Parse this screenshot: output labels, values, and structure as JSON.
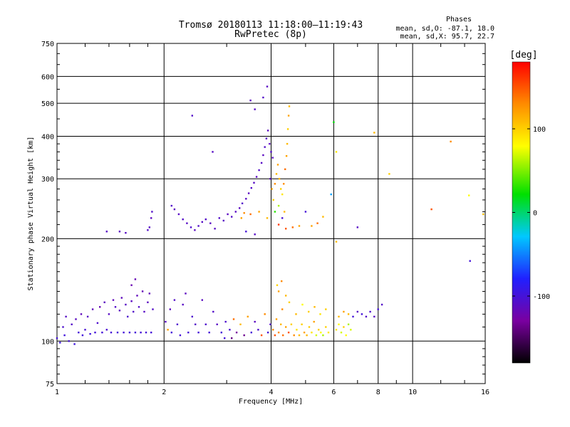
{
  "chart_data": {
    "type": "scatter",
    "title": "Tromsø 20180113 11:18:00–11:19:43",
    "subtitle": "RwPretec (8p)",
    "info_heading": "Phases",
    "info_lines": [
      "mean, sd,O: -87.1, 18.0",
      "mean, sd,X:  95.7, 22.7"
    ],
    "xlabel": "Frequency [MHz]",
    "ylabel": "Stationary phase Virtual Height [km]",
    "x_scale": "log",
    "y_scale": "log",
    "xlim": [
      1,
      16
    ],
    "ylim": [
      75,
      750
    ],
    "x_ticks": [
      1,
      2,
      4,
      6,
      8,
      10,
      16
    ],
    "x_tick_labels": [
      "1",
      "2",
      "4",
      "6",
      "8",
      "10",
      "16"
    ],
    "y_ticks": [
      75,
      100,
      200,
      300,
      400,
      500,
      600,
      750
    ],
    "y_tick_labels": [
      "75",
      "100",
      "200",
      "300",
      "400",
      "500",
      "600",
      "750"
    ],
    "grid": true,
    "colorbar": {
      "label": "[deg]",
      "range": [
        -180,
        180
      ],
      "ticks": [
        100,
        0,
        -100
      ],
      "tick_labels": [
        "100",
        "0",
        "-100"
      ],
      "colors": [
        "#000000",
        "#7a00a0",
        "#2020ff",
        "#00c8ff",
        "#00e000",
        "#ffff00",
        "#ff8c00",
        "#ff0000"
      ]
    },
    "series": [
      {
        "name": "",
        "points": [
          [
            1.0,
            102,
            -100
          ],
          [
            1.02,
            99,
            -95
          ],
          [
            1.04,
            110,
            -105
          ],
          [
            1.05,
            104,
            -98
          ],
          [
            1.06,
            118,
            -110
          ],
          [
            1.08,
            100,
            -102
          ],
          [
            1.1,
            112,
            -108
          ],
          [
            1.12,
            98,
            -96
          ],
          [
            1.13,
            116,
            -112
          ],
          [
            1.15,
            106,
            -100
          ],
          [
            1.17,
            120,
            -115
          ],
          [
            1.18,
            104,
            -99
          ],
          [
            1.2,
            108,
            -102
          ],
          [
            1.22,
            118,
            -110
          ],
          [
            1.24,
            105,
            -98
          ],
          [
            1.26,
            124,
            -115
          ],
          [
            1.28,
            106,
            -100
          ],
          [
            1.3,
            113,
            -105
          ],
          [
            1.32,
            126,
            -118
          ],
          [
            1.34,
            106,
            -100
          ],
          [
            1.36,
            130,
            -112
          ],
          [
            1.38,
            108,
            -103
          ],
          [
            1.4,
            120,
            -110
          ],
          [
            1.42,
            106,
            -101
          ],
          [
            1.44,
            132,
            -115
          ],
          [
            1.46,
            126,
            -108
          ],
          [
            1.48,
            106,
            -100
          ],
          [
            1.5,
            123,
            -112
          ],
          [
            1.52,
            134,
            -114
          ],
          [
            1.54,
            106,
            -100
          ],
          [
            1.56,
            128,
            -110
          ],
          [
            1.58,
            118,
            -105
          ],
          [
            1.6,
            106,
            -100
          ],
          [
            1.62,
            131,
            -112
          ],
          [
            1.64,
            122,
            -108
          ],
          [
            1.66,
            106,
            -100
          ],
          [
            1.68,
            136,
            -115
          ],
          [
            1.7,
            126,
            -108
          ],
          [
            1.72,
            106,
            -101
          ],
          [
            1.74,
            140,
            -118
          ],
          [
            1.76,
            122,
            -110
          ],
          [
            1.78,
            106,
            -100
          ],
          [
            1.8,
            130,
            -112
          ],
          [
            1.82,
            138,
            -116
          ],
          [
            1.84,
            106,
            -100
          ],
          [
            1.86,
            124,
            -108
          ],
          [
            1.62,
            146,
            -120
          ],
          [
            1.66,
            152,
            -118
          ],
          [
            1.38,
            210,
            -110
          ],
          [
            1.5,
            210,
            -112
          ],
          [
            1.56,
            208,
            -110
          ],
          [
            1.8,
            212,
            -108
          ],
          [
            1.82,
            216,
            -110
          ],
          [
            1.84,
            230,
            -112
          ],
          [
            1.85,
            240,
            -108
          ],
          [
            2.02,
            114,
            -110
          ],
          [
            2.05,
            108,
            120
          ],
          [
            2.08,
            124,
            -112
          ],
          [
            2.1,
            106,
            -100
          ],
          [
            2.14,
            132,
            -108
          ],
          [
            2.18,
            112,
            -105
          ],
          [
            2.22,
            104,
            -100
          ],
          [
            2.26,
            128,
            -110
          ],
          [
            2.3,
            138,
            -112
          ],
          [
            2.34,
            106,
            -100
          ],
          [
            2.4,
            118,
            -105
          ],
          [
            2.45,
            112,
            -108
          ],
          [
            2.5,
            106,
            -100
          ],
          [
            2.56,
            132,
            -112
          ],
          [
            2.62,
            112,
            -105
          ],
          [
            2.68,
            106,
            -100
          ],
          [
            2.75,
            122,
            -108
          ],
          [
            2.82,
            112,
            -110
          ],
          [
            2.9,
            106,
            -100
          ],
          [
            2.98,
            114,
            -105
          ],
          [
            3.06,
            108,
            -102
          ],
          [
            3.14,
            116,
            140
          ],
          [
            3.2,
            106,
            -130
          ],
          [
            3.28,
            112,
            110
          ],
          [
            3.36,
            104,
            -135
          ],
          [
            3.44,
            118,
            120
          ],
          [
            3.52,
            106,
            -100
          ],
          [
            3.6,
            114,
            -112
          ],
          [
            3.68,
            108,
            -105
          ],
          [
            3.76,
            104,
            150
          ],
          [
            3.84,
            120,
            130
          ],
          [
            3.92,
            106,
            -100
          ],
          [
            3.98,
            112,
            -108
          ],
          [
            2.96,
            102,
            -100
          ],
          [
            3.1,
            102,
            -140
          ],
          [
            2.1,
            250,
            -108
          ],
          [
            2.14,
            244,
            -112
          ],
          [
            2.2,
            236,
            -110
          ],
          [
            2.26,
            228,
            -108
          ],
          [
            2.32,
            222,
            -110
          ],
          [
            2.38,
            216,
            -105
          ],
          [
            2.44,
            212,
            -112
          ],
          [
            2.5,
            218,
            -108
          ],
          [
            2.56,
            224,
            -110
          ],
          [
            2.62,
            228,
            -108
          ],
          [
            2.7,
            222,
            -112
          ],
          [
            2.78,
            214,
            -110
          ],
          [
            2.86,
            230,
            -108
          ],
          [
            2.94,
            226,
            -110
          ],
          [
            3.02,
            236,
            -112
          ],
          [
            3.1,
            232,
            -108
          ],
          [
            3.18,
            240,
            -110
          ],
          [
            3.26,
            246,
            -112
          ],
          [
            3.32,
            254,
            -108
          ],
          [
            3.4,
            262,
            -110
          ],
          [
            3.46,
            272,
            -112
          ],
          [
            3.52,
            282,
            -108
          ],
          [
            3.58,
            292,
            -110
          ],
          [
            3.64,
            304,
            -112
          ],
          [
            3.7,
            318,
            -108
          ],
          [
            3.76,
            334,
            -110
          ],
          [
            3.8,
            352,
            -112
          ],
          [
            3.84,
            372,
            -108
          ],
          [
            3.88,
            394,
            -110
          ],
          [
            3.92,
            416,
            -112
          ],
          [
            3.6,
            480,
            -110
          ],
          [
            3.5,
            510,
            -112
          ],
          [
            3.8,
            520,
            -108
          ],
          [
            3.9,
            560,
            -110
          ],
          [
            2.4,
            460,
            -108
          ],
          [
            2.74,
            360,
            -110
          ],
          [
            3.96,
            380,
            -112
          ],
          [
            4.0,
            360,
            -108
          ],
          [
            4.04,
            346,
            -110
          ],
          [
            3.98,
            300,
            -112
          ],
          [
            4.02,
            280,
            120
          ],
          [
            4.06,
            260,
            100
          ],
          [
            4.1,
            290,
            130
          ],
          [
            4.14,
            310,
            110
          ],
          [
            4.18,
            330,
            120
          ],
          [
            4.22,
            300,
            110
          ],
          [
            4.26,
            280,
            100
          ],
          [
            4.3,
            270,
            90
          ],
          [
            4.34,
            290,
            130
          ],
          [
            4.38,
            320,
            140
          ],
          [
            4.42,
            350,
            120
          ],
          [
            4.44,
            380,
            110
          ],
          [
            4.46,
            420,
            100
          ],
          [
            4.48,
            460,
            120
          ],
          [
            4.5,
            490,
            110
          ],
          [
            4.36,
            240,
            110
          ],
          [
            4.3,
            230,
            -100
          ],
          [
            4.2,
            250,
            60
          ],
          [
            4.1,
            240,
            30
          ],
          [
            3.9,
            230,
            110
          ],
          [
            3.7,
            240,
            120
          ],
          [
            3.5,
            236,
            140
          ],
          [
            4.4,
            214,
            150
          ],
          [
            4.6,
            216,
            140
          ],
          [
            4.8,
            218,
            120
          ],
          [
            4.2,
            220,
            160
          ],
          [
            3.4,
            210,
            -100
          ],
          [
            3.6,
            206,
            -110
          ],
          [
            3.3,
            230,
            120
          ],
          [
            3.36,
            238,
            130
          ],
          [
            4.05,
            108,
            130
          ],
          [
            4.1,
            104,
            150
          ],
          [
            4.14,
            116,
            120
          ],
          [
            4.2,
            106,
            130
          ],
          [
            4.26,
            112,
            110
          ],
          [
            4.32,
            104,
            140
          ],
          [
            4.4,
            110,
            120
          ],
          [
            4.48,
            106,
            150
          ],
          [
            4.56,
            112,
            100
          ],
          [
            4.64,
            104,
            130
          ],
          [
            4.72,
            108,
            90
          ],
          [
            4.8,
            104,
            110
          ],
          [
            4.88,
            112,
            100
          ],
          [
            4.96,
            106,
            120
          ],
          [
            5.04,
            104,
            110
          ],
          [
            5.12,
            110,
            100
          ],
          [
            5.2,
            106,
            90
          ],
          [
            5.28,
            114,
            120
          ],
          [
            5.36,
            104,
            70
          ],
          [
            5.44,
            108,
            100
          ],
          [
            5.52,
            106,
            80
          ],
          [
            5.6,
            104,
            60
          ],
          [
            5.7,
            110,
            100
          ],
          [
            5.8,
            106,
            90
          ],
          [
            4.3,
            124,
            130
          ],
          [
            4.5,
            130,
            100
          ],
          [
            4.7,
            120,
            110
          ],
          [
            4.9,
            128,
            80
          ],
          [
            5.1,
            122,
            100
          ],
          [
            5.3,
            126,
            110
          ],
          [
            5.5,
            120,
            90
          ],
          [
            5.7,
            124,
            100
          ],
          [
            4.2,
            140,
            120
          ],
          [
            4.4,
            136,
            110
          ],
          [
            4.16,
            146,
            100
          ],
          [
            4.28,
            150,
            130
          ],
          [
            6.1,
            108,
            90
          ],
          [
            6.2,
            112,
            80
          ],
          [
            6.3,
            106,
            70
          ],
          [
            6.4,
            110,
            100
          ],
          [
            6.5,
            104,
            80
          ],
          [
            6.6,
            112,
            60
          ],
          [
            6.7,
            108,
            70
          ],
          [
            6.2,
            118,
            110
          ],
          [
            6.4,
            122,
            120
          ],
          [
            6.6,
            120,
            110
          ],
          [
            6.8,
            118,
            -100
          ],
          [
            7.0,
            122,
            -110
          ],
          [
            7.2,
            120,
            -100
          ],
          [
            7.4,
            118,
            -108
          ],
          [
            7.6,
            122,
            -105
          ],
          [
            7.8,
            118,
            -110
          ],
          [
            8.0,
            124,
            -100
          ],
          [
            8.2,
            128,
            -108
          ],
          [
            6.0,
            440,
            20
          ],
          [
            6.1,
            360,
            90
          ],
          [
            5.9,
            270,
            -40
          ],
          [
            6.1,
            196,
            110
          ],
          [
            7.8,
            410,
            110
          ],
          [
            8.6,
            310,
            100
          ],
          [
            12.8,
            386,
            130
          ],
          [
            14.4,
            268,
            80
          ],
          [
            14.5,
            172,
            -100
          ],
          [
            11.3,
            244,
            150
          ],
          [
            15.8,
            236,
            110
          ],
          [
            5.4,
            222,
            140
          ],
          [
            5.2,
            218,
            120
          ],
          [
            5.6,
            232,
            110
          ],
          [
            7.0,
            216,
            -110
          ],
          [
            5.0,
            240,
            -100
          ]
        ]
      }
    ]
  }
}
